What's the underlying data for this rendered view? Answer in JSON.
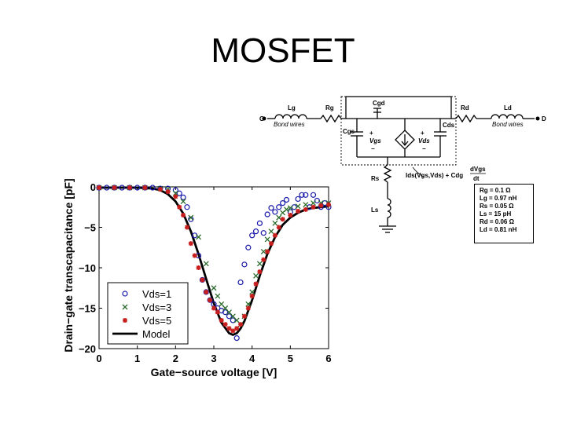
{
  "slide": {
    "title": "MOSFET"
  },
  "circuit": {
    "labels": {
      "g": "G",
      "d": "D",
      "lg": "Lg",
      "rg": "Rg",
      "cgd": "Cgd",
      "rd": "Rd",
      "ld": "Ld",
      "bond_left": "Bond wires",
      "bond_right": "Bond wires",
      "cgs": "Cgs",
      "cds": "Cds",
      "vgs": "Vgs",
      "vds": "Vds",
      "plus1": "+",
      "minus1": "−",
      "plus2": "+",
      "minus2": "−",
      "rs": "Rs",
      "ls": "Ls",
      "ids_eq": "Ids(Vgs,Vds) + Cdg",
      "dv_num": "dVgs",
      "dv_den": "dt"
    },
    "params": [
      "Rg = 0.1 Ω",
      "Lg = 0.97 nH",
      "Rs = 0.05 Ω",
      "Ls = 15 pH",
      "Rd = 0.06 Ω",
      "Ld = 0.81 nH"
    ]
  },
  "chart_data": {
    "type": "scatter",
    "xlabel": "Gate−source voltage [V]",
    "ylabel": "Drain−gate transcapacitance [pF]",
    "xlim": [
      0,
      6
    ],
    "ylim": [
      -20,
      0
    ],
    "xticks": [
      "0",
      "1",
      "2",
      "3",
      "4",
      "5",
      "6"
    ],
    "yticks": [
      "0",
      "−5",
      "−10",
      "−15",
      "−20"
    ],
    "legend_position": "bottom-left",
    "colors": {
      "vds1": "#1a1aaa",
      "vds3": "#2a6a2a",
      "vds5": "#c81e1e",
      "model": "#000000"
    },
    "series": [
      {
        "name": "Vds=1",
        "marker": "circle",
        "x": [
          0.0,
          0.2,
          0.4,
          0.6,
          0.8,
          1.0,
          1.2,
          1.4,
          1.6,
          1.8,
          2.0,
          2.1,
          2.2,
          2.3,
          2.4,
          2.5,
          2.6,
          2.7,
          2.8,
          2.9,
          3.0,
          3.1,
          3.2,
          3.3,
          3.4,
          3.5,
          3.6,
          3.7,
          3.8,
          3.9,
          4.0,
          4.1,
          4.2,
          4.3,
          4.4,
          4.5,
          4.6,
          4.7,
          4.8,
          4.9,
          5.0,
          5.1,
          5.2,
          5.3,
          5.4,
          5.5,
          5.6,
          5.7,
          5.8,
          5.9,
          6.0
        ],
        "y": [
          -0.1,
          -0.1,
          -0.1,
          -0.1,
          -0.1,
          -0.1,
          -0.1,
          -0.1,
          -0.2,
          -0.2,
          -0.4,
          -0.8,
          -1.3,
          -2.5,
          -4.0,
          -6.0,
          -8.5,
          -11.5,
          -13.0,
          -14.0,
          -14.5,
          -15.0,
          -15.3,
          -15.5,
          -16.0,
          -16.5,
          -18.7,
          -11.8,
          -9.6,
          -7.5,
          -6.0,
          -5.5,
          -4.5,
          -5.7,
          -3.4,
          -2.6,
          -3.1,
          -2.5,
          -2.0,
          -1.6,
          -3.1,
          -2.5,
          -1.5,
          -1.0,
          -1.0,
          -2.5,
          -1.0,
          -1.7,
          -2.5,
          -2.0,
          -2.5
        ]
      },
      {
        "name": "Vds=3",
        "marker": "cross",
        "x": [
          0.0,
          0.4,
          0.8,
          1.2,
          1.6,
          1.8,
          2.0,
          2.2,
          2.4,
          2.6,
          2.8,
          3.0,
          3.1,
          3.2,
          3.3,
          3.4,
          3.5,
          3.6,
          3.7,
          3.8,
          3.9,
          4.0,
          4.1,
          4.2,
          4.3,
          4.4,
          4.5,
          4.6,
          4.7,
          4.8,
          4.9,
          5.0,
          5.2,
          5.4,
          5.6,
          5.8,
          6.0
        ],
        "y": [
          -0.1,
          -0.1,
          -0.1,
          -0.1,
          -0.2,
          -0.3,
          -0.8,
          -1.8,
          -3.8,
          -6.2,
          -9.5,
          -12.5,
          -13.5,
          -14.5,
          -15.0,
          -15.5,
          -16.0,
          -16.5,
          -17.0,
          -16.0,
          -14.5,
          -13.0,
          -11.0,
          -9.5,
          -8.0,
          -6.5,
          -5.5,
          -4.5,
          -3.8,
          -3.2,
          -2.8,
          -2.6,
          -2.4,
          -2.2,
          -2.0,
          -2.0,
          -2.0
        ]
      },
      {
        "name": "Vds=5",
        "marker": "star",
        "x": [
          0.0,
          0.4,
          0.8,
          1.2,
          1.6,
          1.8,
          2.0,
          2.1,
          2.2,
          2.3,
          2.4,
          2.5,
          2.6,
          2.7,
          2.8,
          2.9,
          3.0,
          3.1,
          3.2,
          3.3,
          3.4,
          3.5,
          3.6,
          3.7,
          3.8,
          3.9,
          4.0,
          4.1,
          4.2,
          4.3,
          4.4,
          4.5,
          4.6,
          4.7,
          4.8,
          5.0,
          5.2,
          5.4,
          5.6,
          5.8,
          6.0
        ],
        "y": [
          -0.1,
          -0.1,
          -0.1,
          -0.1,
          -0.3,
          -0.6,
          -1.2,
          -2.5,
          -3.5,
          -5.0,
          -7.0,
          -8.5,
          -10.0,
          -11.5,
          -13.0,
          -14.0,
          -15.0,
          -15.5,
          -16.5,
          -17.0,
          -17.5,
          -17.8,
          -17.5,
          -17.0,
          -16.0,
          -15.0,
          -13.5,
          -12.0,
          -10.5,
          -9.0,
          -8.0,
          -7.0,
          -6.0,
          -5.0,
          -4.0,
          -3.5,
          -3.0,
          -2.8,
          -2.5,
          -2.3,
          -2.2
        ]
      },
      {
        "name": "Model",
        "marker": "line",
        "x": [
          0.0,
          0.5,
          1.0,
          1.4,
          1.6,
          1.8,
          2.0,
          2.2,
          2.4,
          2.6,
          2.8,
          3.0,
          3.2,
          3.4,
          3.5,
          3.6,
          3.7,
          3.8,
          4.0,
          4.2,
          4.4,
          4.6,
          4.8,
          5.0,
          5.2,
          5.4,
          5.6,
          5.8,
          6.0
        ],
        "y": [
          -0.1,
          -0.1,
          -0.1,
          -0.2,
          -0.4,
          -0.9,
          -1.8,
          -3.3,
          -5.5,
          -8.3,
          -11.4,
          -14.4,
          -16.8,
          -18.1,
          -18.3,
          -18.1,
          -17.5,
          -16.6,
          -14.0,
          -11.0,
          -8.3,
          -6.2,
          -4.7,
          -3.8,
          -3.2,
          -2.8,
          -2.6,
          -2.5,
          -2.4
        ]
      }
    ]
  }
}
